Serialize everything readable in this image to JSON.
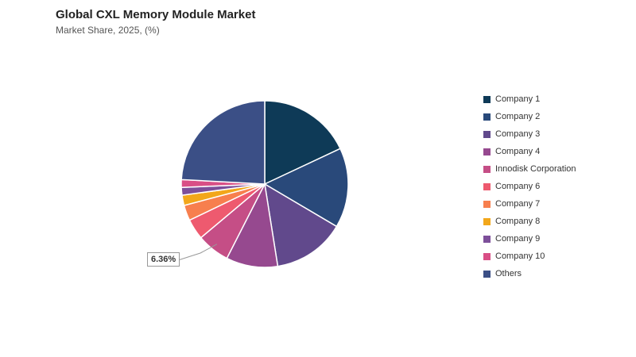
{
  "title": "Global CXL Memory Module Market",
  "subtitle": "Market Share, 2025, (%)",
  "chart_data": {
    "type": "pie",
    "title": "Global CXL Memory Module Market",
    "subtitle": "Market Share, 2025, (%)",
    "legend_position": "right",
    "start_angle_deg": 0,
    "direction": "clockwise",
    "slices": [
      {
        "name": "Company 1",
        "value": 18.0,
        "color": "#0e3a57"
      },
      {
        "name": "Company 2",
        "value": 15.5,
        "color": "#29497a"
      },
      {
        "name": "Company 3",
        "value": 14.0,
        "color": "#61498c"
      },
      {
        "name": "Company 4",
        "value": 10.0,
        "color": "#96498f"
      },
      {
        "name": "Innodisk Corporation",
        "value": 6.36,
        "color": "#c54e86"
      },
      {
        "name": "Company 6",
        "value": 4.0,
        "color": "#ee5a6f"
      },
      {
        "name": "Company 7",
        "value": 3.0,
        "color": "#f77f4e"
      },
      {
        "name": "Company 8",
        "value": 2.0,
        "color": "#f2a71b"
      },
      {
        "name": "Company 9",
        "value": 1.5,
        "color": "#7d4f9a"
      },
      {
        "name": "Company 10",
        "value": 1.5,
        "color": "#d94f86"
      },
      {
        "name": "Others",
        "value": 24.14,
        "color": "#3b4f86"
      }
    ],
    "data_labels": [
      {
        "slice": "Innodisk Corporation",
        "text": "6.36%"
      }
    ]
  }
}
